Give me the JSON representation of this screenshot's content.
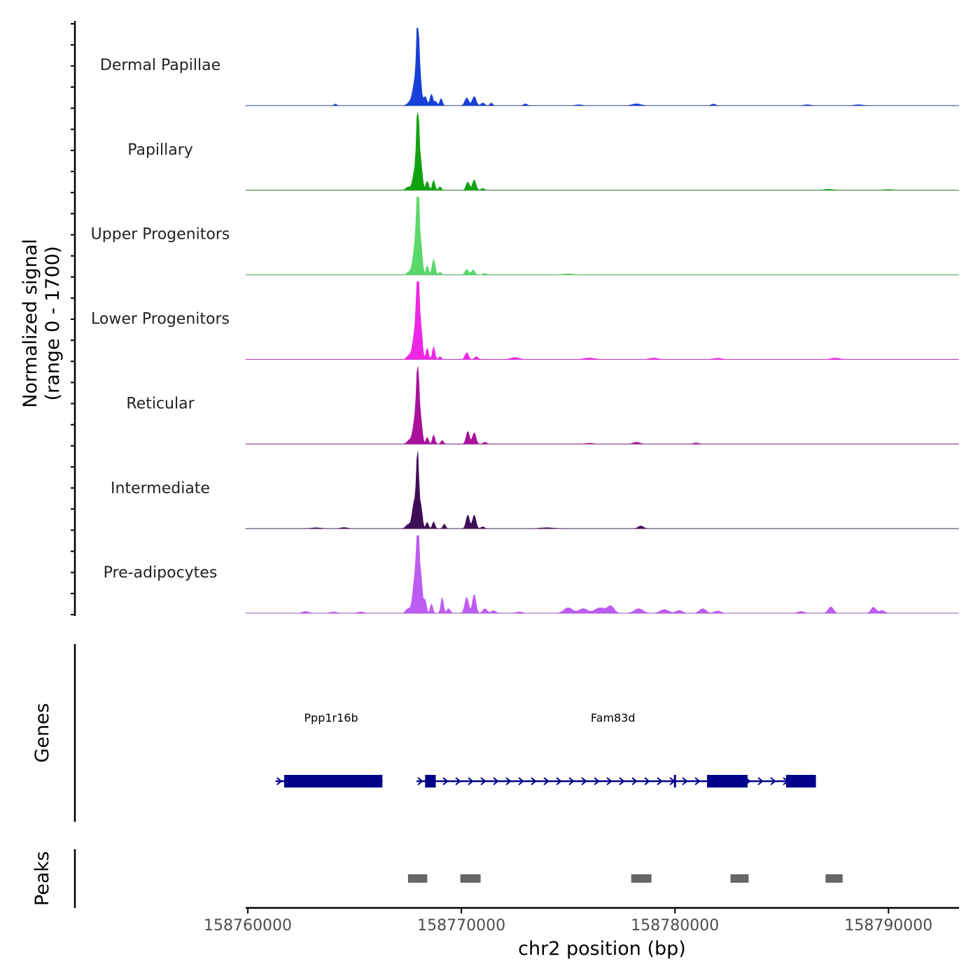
{
  "chart_data": {
    "type": "area",
    "title": "",
    "ylabel": "Normalized signal",
    "ylabel_range": "(range 0 - 1700)",
    "ylim": [
      0,
      1700
    ],
    "xlabel": "chr2 position (bp)",
    "xlim": [
      158759900,
      158793300
    ],
    "xticks": [
      158760000,
      158770000,
      158780000,
      158790000
    ],
    "xtick_labels": [
      "158760000",
      "158770000",
      "158780000",
      "158790000"
    ],
    "tracks": [
      {
        "name": "Dermal Papillae",
        "color": "#1740d8",
        "peaks": [
          [
            158764100,
            35,
            60
          ],
          [
            158767600,
            80,
            120
          ],
          [
            158767850,
            600,
            110
          ],
          [
            158767950,
            1500,
            50
          ],
          [
            158768050,
            700,
            70
          ],
          [
            158768300,
            200,
            80
          ],
          [
            158768600,
            250,
            70
          ],
          [
            158768800,
            90,
            60
          ],
          [
            158769050,
            160,
            60
          ],
          [
            158770250,
            170,
            90
          ],
          [
            158770600,
            200,
            90
          ],
          [
            158771000,
            60,
            80
          ],
          [
            158771400,
            60,
            60
          ],
          [
            158773000,
            40,
            80
          ],
          [
            158775500,
            20,
            150
          ],
          [
            158778200,
            40,
            200
          ],
          [
            158781800,
            35,
            100
          ],
          [
            158786200,
            20,
            150
          ],
          [
            158788600,
            20,
            200
          ]
        ]
      },
      {
        "name": "Papillary",
        "color": "#11a211",
        "peaks": [
          [
            158767500,
            70,
            100
          ],
          [
            158767850,
            500,
            110
          ],
          [
            158767960,
            1650,
            55
          ],
          [
            158768100,
            600,
            70
          ],
          [
            158768400,
            200,
            70
          ],
          [
            158768700,
            220,
            60
          ],
          [
            158769000,
            80,
            60
          ],
          [
            158770300,
            180,
            80
          ],
          [
            158770600,
            230,
            80
          ],
          [
            158771000,
            40,
            80
          ],
          [
            158787200,
            20,
            200
          ],
          [
            158790000,
            15,
            200
          ]
        ]
      },
      {
        "name": "Upper Progenitors",
        "color": "#5ad86a",
        "peaks": [
          [
            158767550,
            60,
            100
          ],
          [
            158767850,
            700,
            110
          ],
          [
            158767960,
            1900,
            55
          ],
          [
            158768100,
            650,
            70
          ],
          [
            158768400,
            200,
            60
          ],
          [
            158768700,
            350,
            70
          ],
          [
            158769000,
            60,
            60
          ],
          [
            158770250,
            120,
            80
          ],
          [
            158770550,
            110,
            80
          ],
          [
            158771100,
            30,
            100
          ],
          [
            158775000,
            20,
            300
          ]
        ]
      },
      {
        "name": "Lower Progenitors",
        "color": "#ef26e6",
        "peaks": [
          [
            158767550,
            90,
            100
          ],
          [
            158767850,
            700,
            110
          ],
          [
            158767960,
            2000,
            55
          ],
          [
            158768100,
            700,
            70
          ],
          [
            158768400,
            250,
            60
          ],
          [
            158768700,
            280,
            60
          ],
          [
            158769000,
            60,
            60
          ],
          [
            158770250,
            150,
            80
          ],
          [
            158770700,
            60,
            80
          ],
          [
            158772500,
            40,
            200
          ],
          [
            158776000,
            30,
            250
          ],
          [
            158779000,
            30,
            200
          ],
          [
            158782000,
            25,
            200
          ],
          [
            158787500,
            30,
            200
          ]
        ]
      },
      {
        "name": "Reticular",
        "color": "#a9119b",
        "peaks": [
          [
            158767550,
            80,
            100
          ],
          [
            158767850,
            600,
            110
          ],
          [
            158767960,
            1400,
            60
          ],
          [
            158768100,
            500,
            70
          ],
          [
            158768400,
            150,
            60
          ],
          [
            158768700,
            200,
            60
          ],
          [
            158769100,
            80,
            60
          ],
          [
            158770300,
            280,
            80
          ],
          [
            158770600,
            250,
            80
          ],
          [
            158771100,
            40,
            80
          ],
          [
            158776000,
            20,
            150
          ],
          [
            158778200,
            40,
            150
          ],
          [
            158781000,
            25,
            120
          ]
        ]
      },
      {
        "name": "Intermediate",
        "color": "#3e0f57",
        "peaks": [
          [
            158763200,
            20,
            200
          ],
          [
            158764500,
            25,
            150
          ],
          [
            158767500,
            90,
            100
          ],
          [
            158767800,
            600,
            100
          ],
          [
            158767950,
            1500,
            55
          ],
          [
            158768100,
            500,
            70
          ],
          [
            158768400,
            140,
            60
          ],
          [
            158768700,
            150,
            60
          ],
          [
            158769200,
            100,
            60
          ],
          [
            158770300,
            300,
            80
          ],
          [
            158770600,
            300,
            80
          ],
          [
            158771000,
            40,
            80
          ],
          [
            158778400,
            60,
            120
          ],
          [
            158774000,
            20,
            300
          ]
        ]
      },
      {
        "name": "Pre-adipocytes",
        "color": "#bd5bf2",
        "peaks": [
          [
            158762700,
            40,
            150
          ],
          [
            158764000,
            30,
            150
          ],
          [
            158765300,
            30,
            150
          ],
          [
            158767500,
            100,
            100
          ],
          [
            158767850,
            900,
            110
          ],
          [
            158767960,
            2100,
            50
          ],
          [
            158768100,
            800,
            70
          ],
          [
            158768300,
            300,
            60
          ],
          [
            158768600,
            200,
            60
          ],
          [
            158769100,
            350,
            60
          ],
          [
            158769400,
            100,
            80
          ],
          [
            158770250,
            350,
            90
          ],
          [
            158770600,
            420,
            80
          ],
          [
            158771100,
            100,
            100
          ],
          [
            158771500,
            60,
            100
          ],
          [
            158772700,
            30,
            150
          ],
          [
            158775000,
            120,
            200
          ],
          [
            158775700,
            100,
            200
          ],
          [
            158776500,
            120,
            250
          ],
          [
            158777000,
            150,
            150
          ],
          [
            158778300,
            100,
            200
          ],
          [
            158779500,
            80,
            200
          ],
          [
            158780200,
            60,
            150
          ],
          [
            158781300,
            100,
            150
          ],
          [
            158782000,
            50,
            150
          ],
          [
            158785900,
            40,
            150
          ],
          [
            158787300,
            140,
            120
          ],
          [
            158789300,
            130,
            120
          ],
          [
            158789700,
            60,
            120
          ]
        ]
      }
    ],
    "genes": [
      {
        "name": "Ppp1r16b",
        "start": 158761300,
        "end": 158766300,
        "exons": [
          [
            158761700,
            158766300
          ]
        ],
        "label_x": 158763900
      },
      {
        "name": "Fam83d",
        "start": 158767900,
        "end": 158786600,
        "exons": [
          [
            158768300,
            158768800
          ],
          [
            158779950,
            158780050
          ],
          [
            158781500,
            158783400
          ],
          [
            158785200,
            158786600
          ]
        ],
        "label_x": 158777100
      }
    ],
    "peaks_track_label": "Peaks",
    "genes_track_label": "Genes",
    "peak_regions": [
      [
        158767500,
        158768400
      ],
      [
        158769950,
        158770900
      ],
      [
        158777950,
        158778900
      ],
      [
        158782600,
        158783450
      ],
      [
        158787050,
        158787850
      ]
    ]
  }
}
